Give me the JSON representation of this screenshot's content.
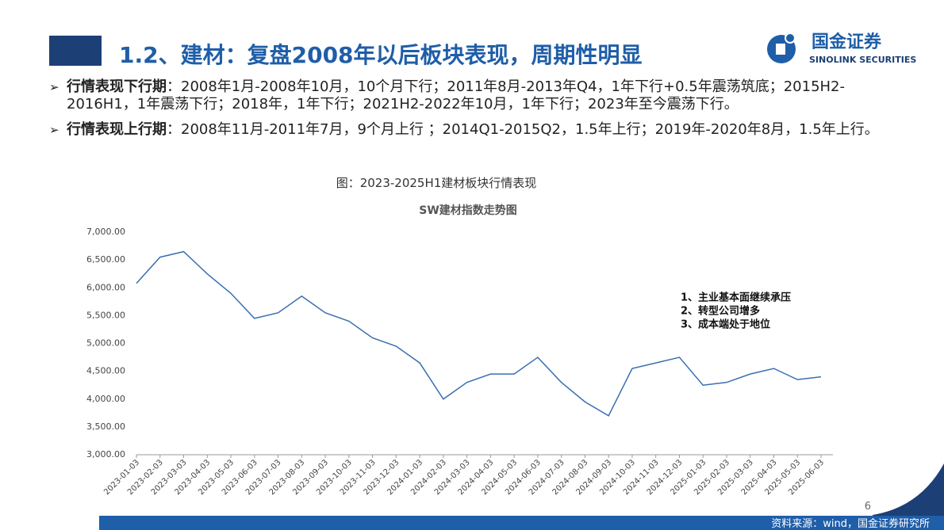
{
  "header": {
    "title": "1.2、建材：复盘2008年以后板块表现，周期性明显",
    "logo_cn": "国金证券",
    "logo_en": "SINOLINK SECURITIES"
  },
  "bullets": [
    {
      "label": "行情表现下行期",
      "text": "：2008年1月-2008年10月，10个月下行；2011年8月-2013年Q4，1年下行+0.5年震荡筑底；2015H2-2016H1，1年震荡下行；2018年，1年下行；2021H2-2022年10月，1年下行；2023年至今震荡下行。"
    },
    {
      "label": "行情表现上行期",
      "text": "：2008年11月-2011年7月，9个月上行 ；2014Q1-2015Q2，1.5年上行；2019年-2020年8月，1.5年上行。"
    }
  ],
  "figure_caption": "图：2023-2025H1建材板块行情表现",
  "chart_data": {
    "type": "line",
    "title": "SW建材指数走势图",
    "categories": [
      "2023-01-03",
      "2023-02-03",
      "2023-03-03",
      "2023-04-03",
      "2023-05-03",
      "2023-06-03",
      "2023-07-03",
      "2023-08-03",
      "2023-09-03",
      "2023-10-03",
      "2023-11-03",
      "2023-12-03",
      "2024-01-03",
      "2024-02-03",
      "2024-03-03",
      "2024-04-03",
      "2024-05-03",
      "2024-06-03",
      "2024-07-03",
      "2024-08-03",
      "2024-09-03",
      "2024-10-03",
      "2024-11-03",
      "2024-12-03",
      "2025-01-03",
      "2025-02-03",
      "2025-03-03",
      "2025-04-03",
      "2025-05-03",
      "2025-06-03"
    ],
    "series": [
      {
        "name": "SW建材指数",
        "color": "#3a6fb0",
        "values": [
          6080,
          6550,
          6650,
          6250,
          5900,
          5450,
          5550,
          5850,
          5550,
          5400,
          5100,
          4950,
          4650,
          4000,
          4300,
          4450,
          4450,
          4750,
          4300,
          3950,
          3700,
          4550,
          4650,
          4750,
          4250,
          4300,
          4450,
          4550,
          4350,
          4400
        ]
      }
    ],
    "ylim": [
      3000,
      7000
    ],
    "yticks": [
      {
        "value": 3000,
        "label": "3,000.00"
      },
      {
        "value": 3500,
        "label": "3,500.00"
      },
      {
        "value": 4000,
        "label": "4,000.00"
      },
      {
        "value": 4500,
        "label": "4,500.00"
      },
      {
        "value": 5000,
        "label": "5,000.00"
      },
      {
        "value": 5500,
        "label": "5,500.00"
      },
      {
        "value": 6000,
        "label": "6,000.00"
      },
      {
        "value": 6500,
        "label": "6,500.00"
      },
      {
        "value": 7000,
        "label": "7,000.00"
      }
    ],
    "annotations": [
      "1、主业基本面继续承压",
      "2、转型公司增多",
      "3、成本端处于地位"
    ]
  },
  "page_number": "6",
  "source": "资料来源：wind，国金证券研究所"
}
